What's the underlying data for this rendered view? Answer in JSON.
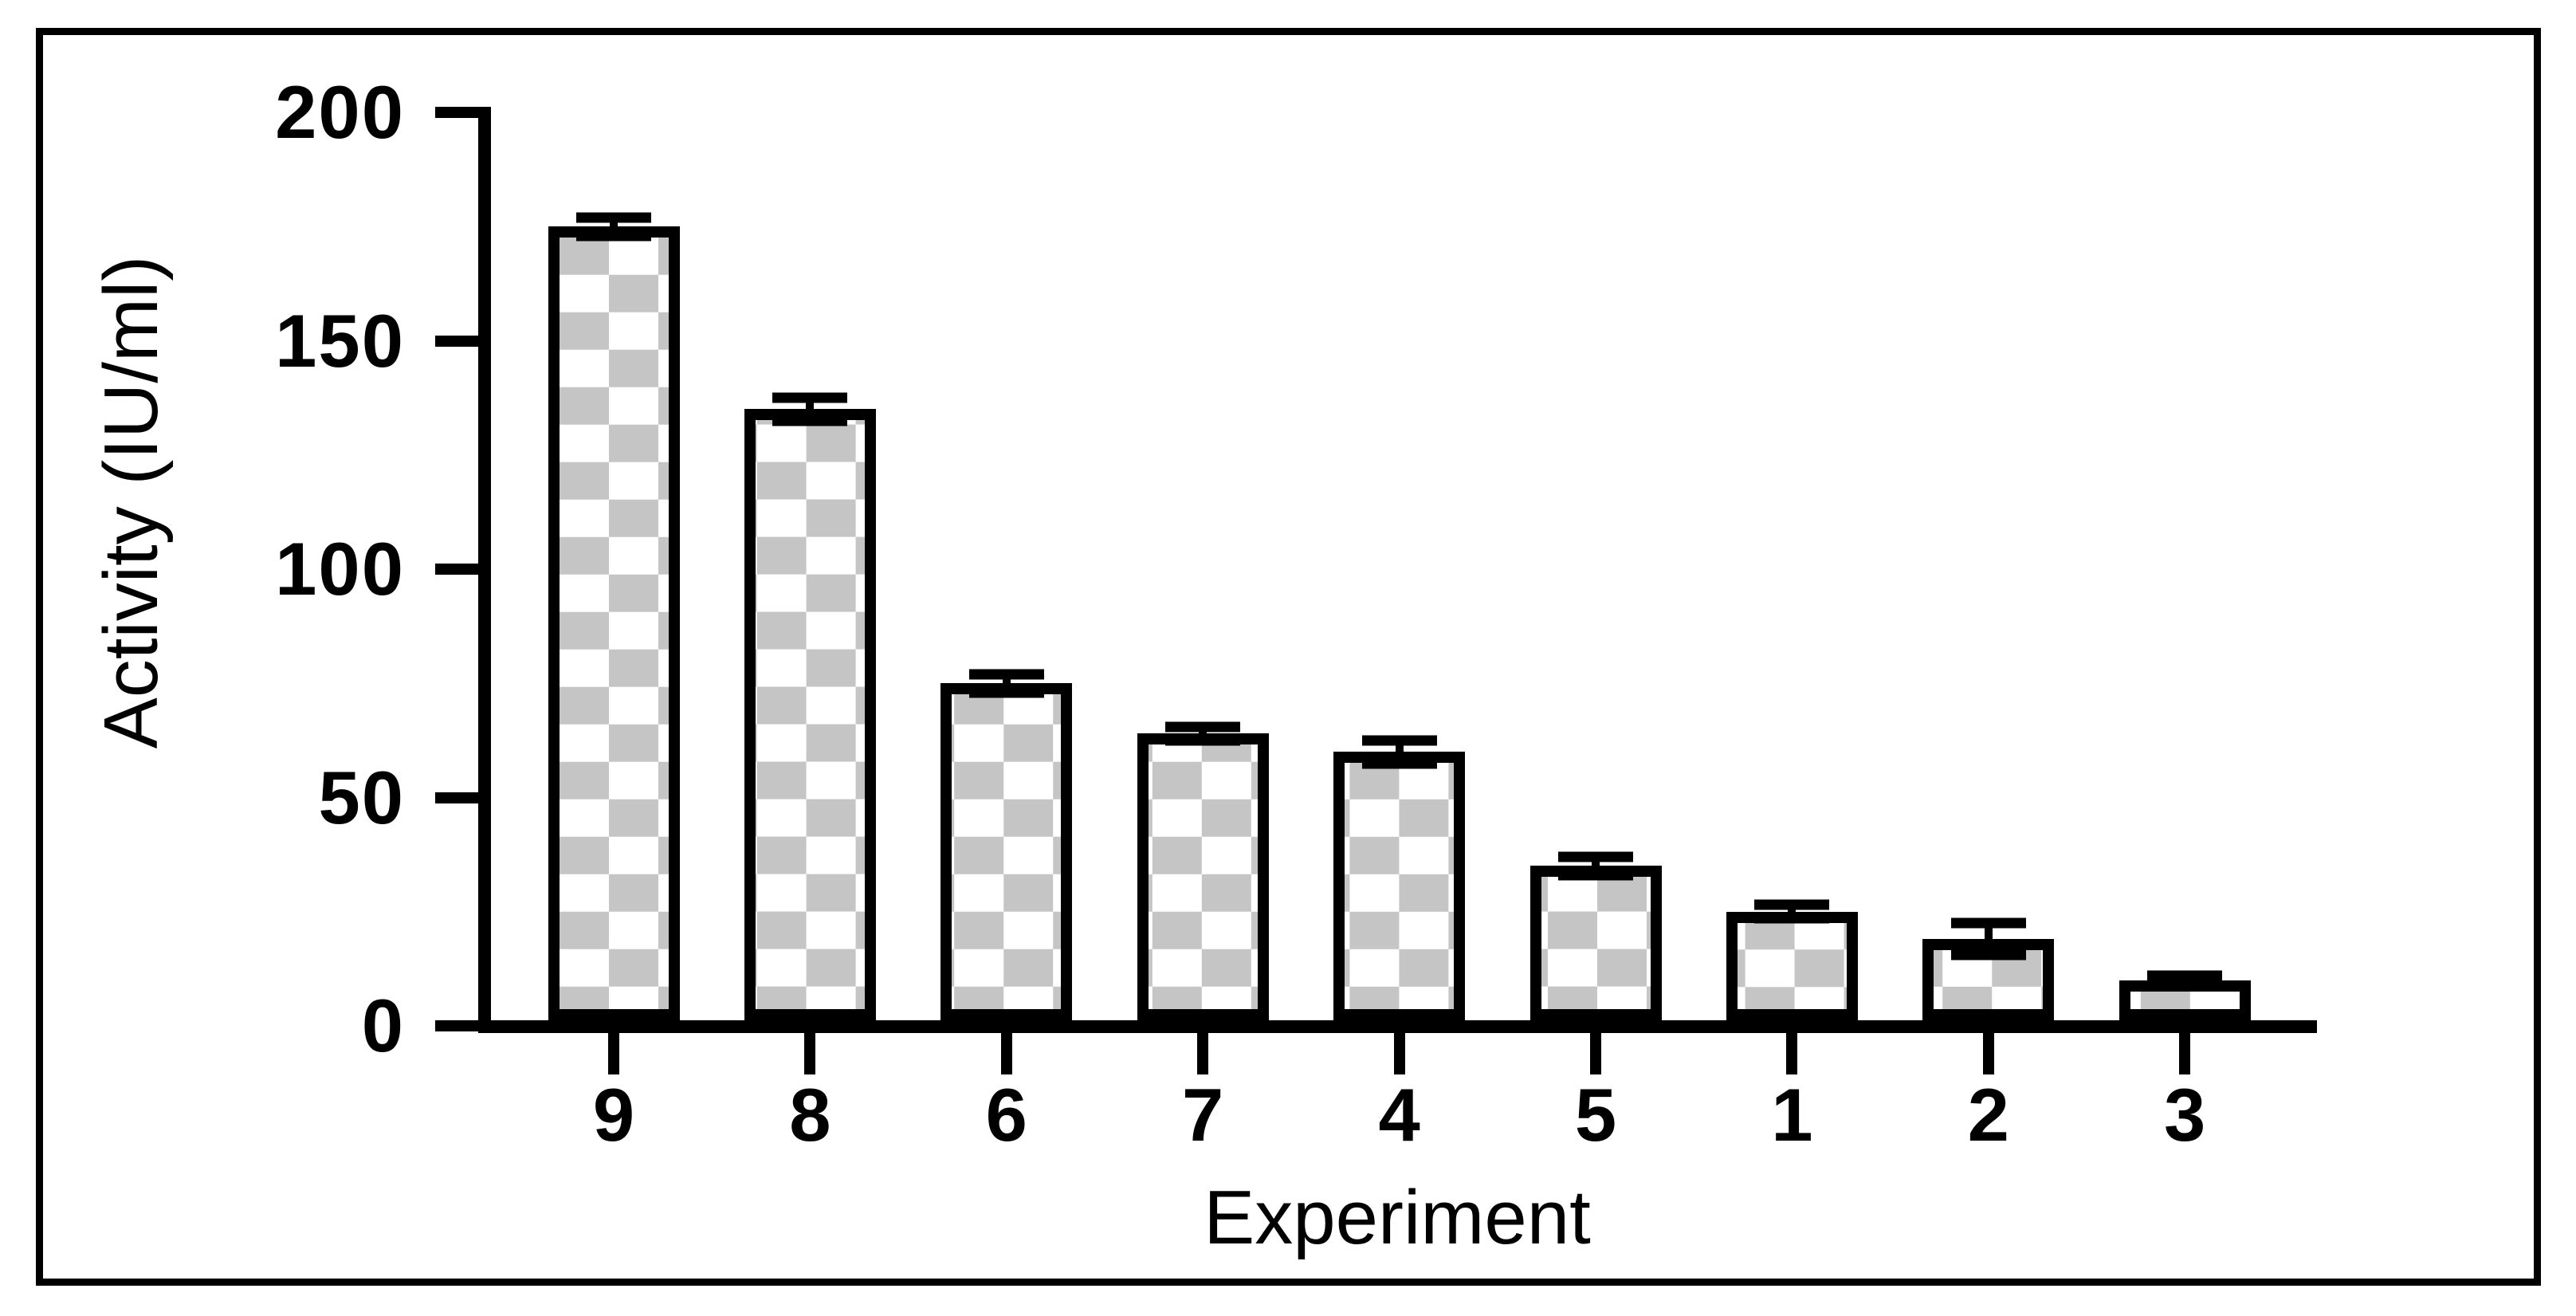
{
  "chart_data": {
    "type": "bar",
    "title": "",
    "xlabel": "Experiment",
    "ylabel": "Activity (IU/ml)",
    "categories": [
      "9",
      "8",
      "6",
      "7",
      "4",
      "5",
      "1",
      "2",
      "3"
    ],
    "values": [
      175,
      135,
      75,
      64,
      60,
      35,
      25,
      19,
      10
    ],
    "errors": [
      2,
      2.5,
      2,
      1.5,
      2.5,
      2,
      1.5,
      3.5,
      1
    ],
    "yticks": [
      0,
      50,
      100,
      150,
      200
    ],
    "ylim": [
      0,
      200
    ],
    "grid": false,
    "legend": false,
    "bar_fill_style": "checkerboard",
    "checker_color": "#c5c5c5",
    "bar_background": "#ffffff",
    "bar_border_color": "#000000",
    "axis_color": "#000000",
    "figure_border_color": "#000000",
    "background": "#ffffff"
  }
}
